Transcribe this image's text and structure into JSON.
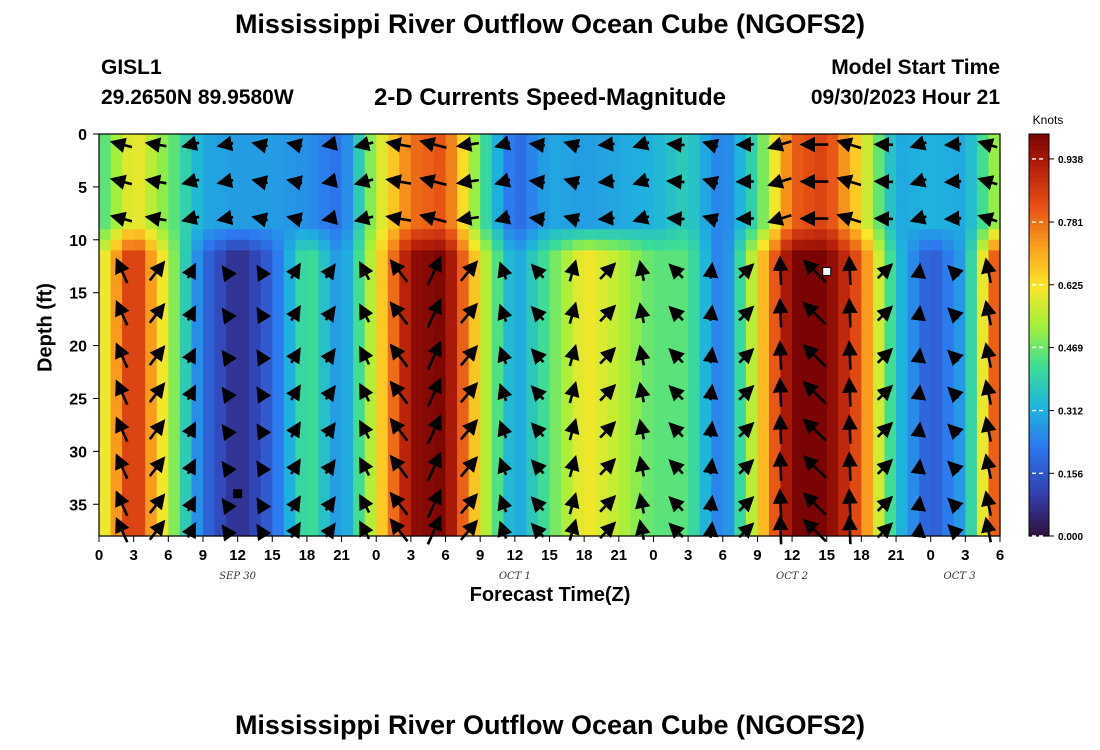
{
  "title": "Mississippi River Outflow Ocean Cube (NGOFS2)",
  "title_repeat": "Mississippi River Outflow Ocean Cube (NGOFS2)",
  "station": {
    "id": "GISL1",
    "coords": "29.2650N  89.9580W"
  },
  "subtitle": "2-D Currents Speed-Magnitude",
  "model": {
    "label": "Model Start Time",
    "value": "09/30/2023 Hour 21"
  },
  "chart_data": {
    "type": "heatmap",
    "title": "2-D Currents Speed-Magnitude",
    "xlabel": "Forecast Time(Z)",
    "ylabel": "Depth (ft)",
    "x_range_hours": [
      0,
      78
    ],
    "y_range_ft": [
      38,
      0
    ],
    "y_inverted": true,
    "x_ticks": [
      "0",
      "3",
      "6",
      "9",
      "12",
      "15",
      "18",
      "21",
      "0",
      "3",
      "6",
      "9",
      "12",
      "15",
      "18",
      "21",
      "0",
      "3",
      "6",
      "9",
      "12",
      "15",
      "18",
      "21",
      "0",
      "3",
      "6"
    ],
    "day_labels": [
      {
        "text": "SEP 30",
        "hour": 12
      },
      {
        "text": "OCT 1",
        "hour": 36
      },
      {
        "text": "OCT 2",
        "hour": 60
      },
      {
        "text": "OCT 3",
        "hour": 74.5
      }
    ],
    "y_ticks": [
      0,
      5,
      10,
      15,
      20,
      25,
      30,
      35
    ],
    "colorbar": {
      "unit": "Knots",
      "ticks": [
        "0.000",
        "0.156",
        "0.312",
        "0.469",
        "0.625",
        "0.781",
        "0.938"
      ],
      "range": [
        0,
        1.0
      ]
    },
    "surface_speed_by_hour": [
      [
        0,
        0.42
      ],
      [
        3,
        0.62
      ],
      [
        6,
        0.48
      ],
      [
        9,
        0.3
      ],
      [
        12,
        0.28
      ],
      [
        15,
        0.28
      ],
      [
        18,
        0.26
      ],
      [
        21,
        0.2
      ],
      [
        24,
        0.55
      ],
      [
        27,
        0.78
      ],
      [
        30,
        0.82
      ],
      [
        33,
        0.45
      ],
      [
        36,
        0.18
      ],
      [
        39,
        0.3
      ],
      [
        42,
        0.28
      ],
      [
        45,
        0.3
      ],
      [
        48,
        0.32
      ],
      [
        51,
        0.38
      ],
      [
        54,
        0.22
      ],
      [
        57,
        0.42
      ],
      [
        60,
        0.8
      ],
      [
        63,
        0.85
      ],
      [
        66,
        0.62
      ],
      [
        69,
        0.3
      ],
      [
        72,
        0.32
      ],
      [
        75,
        0.3
      ],
      [
        78,
        0.55
      ]
    ],
    "deep_speed_by_hour": [
      [
        0,
        0.55
      ],
      [
        3,
        0.9
      ],
      [
        6,
        0.55
      ],
      [
        9,
        0.2
      ],
      [
        12,
        0.06
      ],
      [
        15,
        0.18
      ],
      [
        18,
        0.45
      ],
      [
        21,
        0.25
      ],
      [
        24,
        0.6
      ],
      [
        27,
        0.97
      ],
      [
        30,
        1.0
      ],
      [
        33,
        0.6
      ],
      [
        36,
        0.28
      ],
      [
        39,
        0.45
      ],
      [
        42,
        0.62
      ],
      [
        45,
        0.55
      ],
      [
        48,
        0.45
      ],
      [
        51,
        0.45
      ],
      [
        54,
        0.2
      ],
      [
        57,
        0.62
      ],
      [
        60,
        1.0
      ],
      [
        63,
        1.0
      ],
      [
        66,
        0.8
      ],
      [
        69,
        0.35
      ],
      [
        72,
        0.15
      ],
      [
        75,
        0.3
      ],
      [
        78,
        0.9
      ]
    ],
    "mixed_layer_depth_ft": 10,
    "markers": [
      {
        "label": "maximum",
        "hour": 63,
        "depth_ft": 13,
        "color": "#ffffff"
      },
      {
        "label": "minimum",
        "hour": 12,
        "depth_ft": 34,
        "color": "#000000"
      }
    ]
  }
}
